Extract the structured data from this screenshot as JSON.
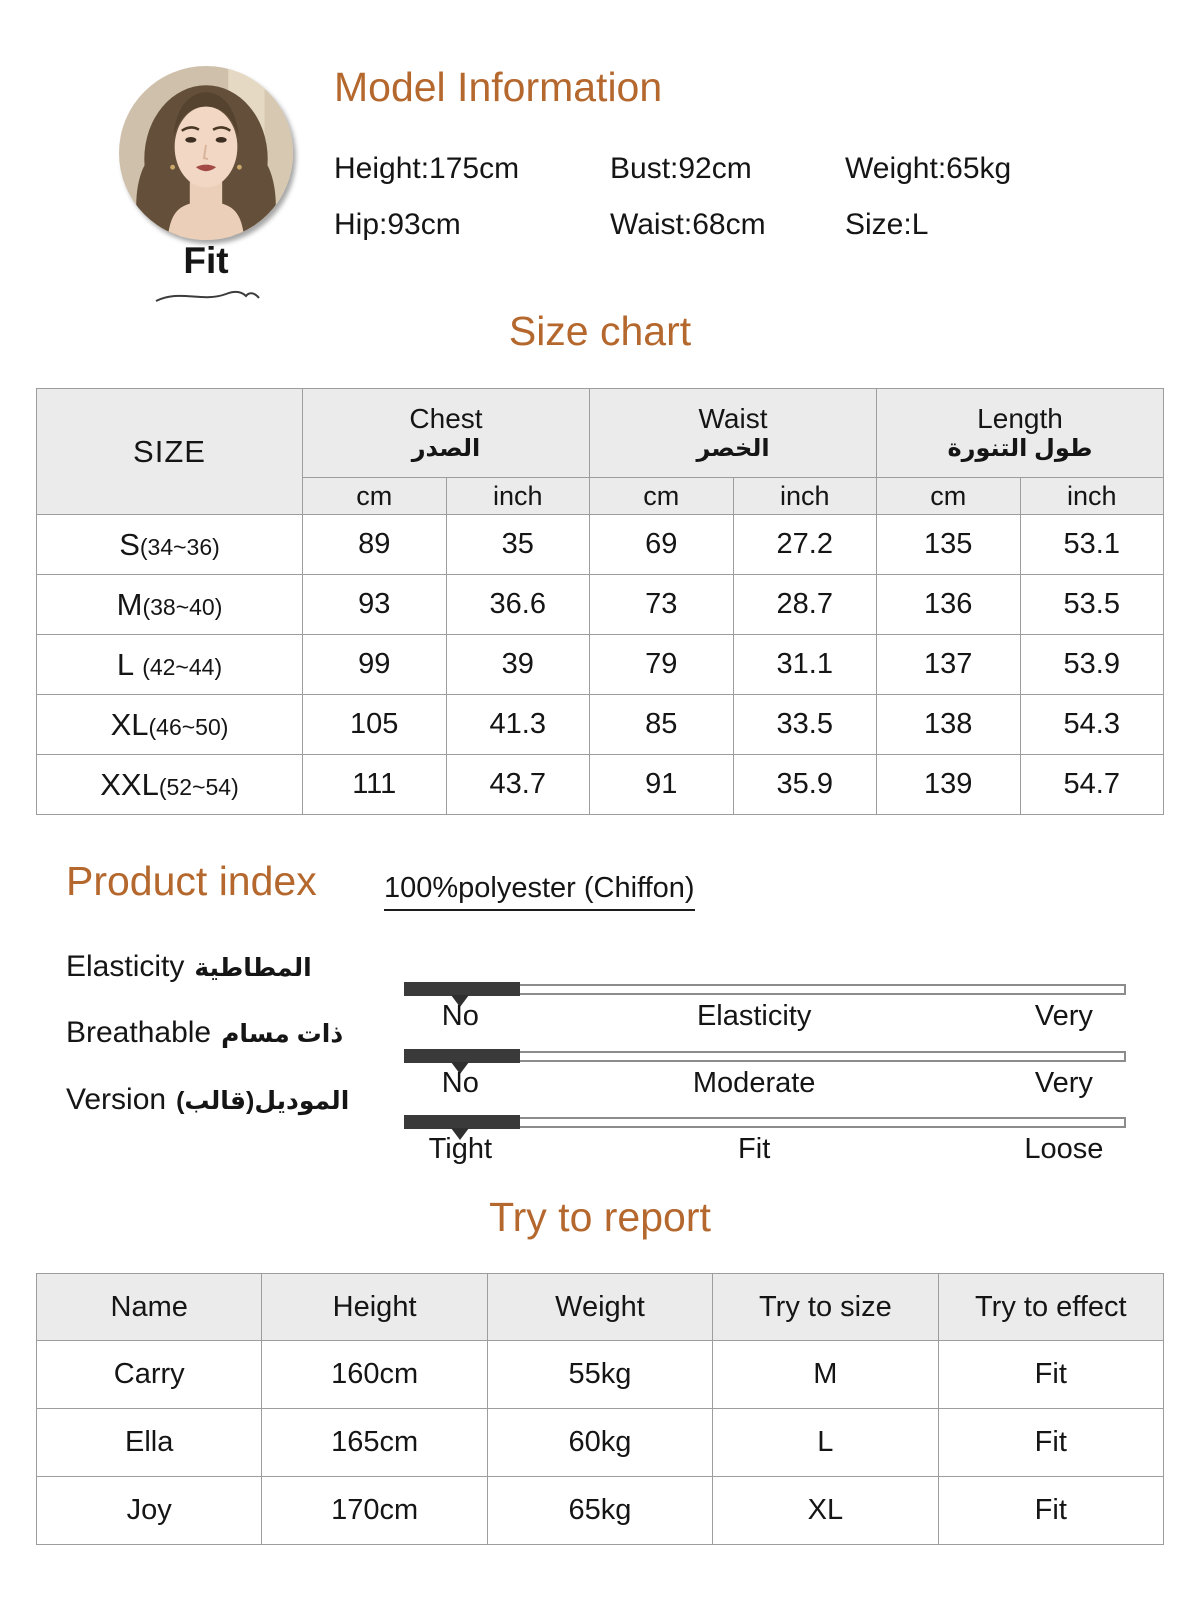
{
  "colors": {
    "accent": "#b5682e",
    "table_header_bg": "#ebebeb",
    "table_border": "#9d9d9d",
    "slider_fill": "#3a3a3a"
  },
  "model_info": {
    "title": "Model Information",
    "photo_label": "Fit",
    "fields": [
      {
        "text": "Height:175cm"
      },
      {
        "text": "Bust:92cm"
      },
      {
        "text": "Weight:65kg"
      },
      {
        "text": "Hip:93cm"
      },
      {
        "text": "Waist:68cm"
      },
      {
        "text": "Size:L"
      }
    ]
  },
  "size_chart": {
    "title": "Size chart",
    "size_header": "SIZE",
    "groups": [
      {
        "en": "Chest",
        "ar": "الصدر"
      },
      {
        "en": "Waist",
        "ar": "الخصر"
      },
      {
        "en": "Length",
        "ar": "طول التنورة"
      }
    ],
    "units": [
      "cm",
      "inch",
      "cm",
      "inch",
      "cm",
      "inch"
    ],
    "rows": [
      {
        "size": "S",
        "range": "(34~36)",
        "values": [
          "89",
          "35",
          "69",
          "27.2",
          "135",
          "53.1"
        ]
      },
      {
        "size": "M",
        "range": "(38~40)",
        "values": [
          "93",
          "36.6",
          "73",
          "28.7",
          "136",
          "53.5"
        ]
      },
      {
        "size": "L",
        "range": "(42~44)",
        "values": [
          "99",
          "39",
          "79",
          "31.1",
          "137",
          "53.9"
        ]
      },
      {
        "size": "XL",
        "range": "(46~50)",
        "values": [
          "105",
          "41.3",
          "85",
          "33.5",
          "138",
          "54.3"
        ]
      },
      {
        "size": "XXL",
        "range": "(52~54)",
        "values": [
          "111",
          "43.7",
          "91",
          "35.9",
          "139",
          "54.7"
        ]
      }
    ]
  },
  "product_index": {
    "title": "Product index",
    "material": "100%polyester (Chiffon)",
    "sliders": [
      {
        "label_en": "Elasticity",
        "label_ar": "المطاطية",
        "scale": [
          "No",
          "Elasticity",
          "Very"
        ],
        "fill_percent": 16,
        "marker_percent": 7.8
      },
      {
        "label_en": "Breathable",
        "label_ar": "ذات مسام",
        "scale": [
          "No",
          "Moderate",
          "Very"
        ],
        "fill_percent": 16,
        "marker_percent": 7.8
      },
      {
        "label_en": "Version",
        "label_ar": "الموديل(قالب)",
        "scale": [
          "Tight",
          "Fit",
          "Loose"
        ],
        "fill_percent": 16,
        "marker_percent": 7.8
      }
    ]
  },
  "try_report": {
    "title": "Try to report",
    "headers": [
      "Name",
      "Height",
      "Weight",
      "Try to size",
      "Try to effect"
    ],
    "rows": [
      [
        "Carry",
        "160cm",
        "55kg",
        "M",
        "Fit"
      ],
      [
        "Ella",
        "165cm",
        "60kg",
        "L",
        "Fit"
      ],
      [
        "Joy",
        "170cm",
        "65kg",
        "XL",
        "Fit"
      ]
    ]
  }
}
